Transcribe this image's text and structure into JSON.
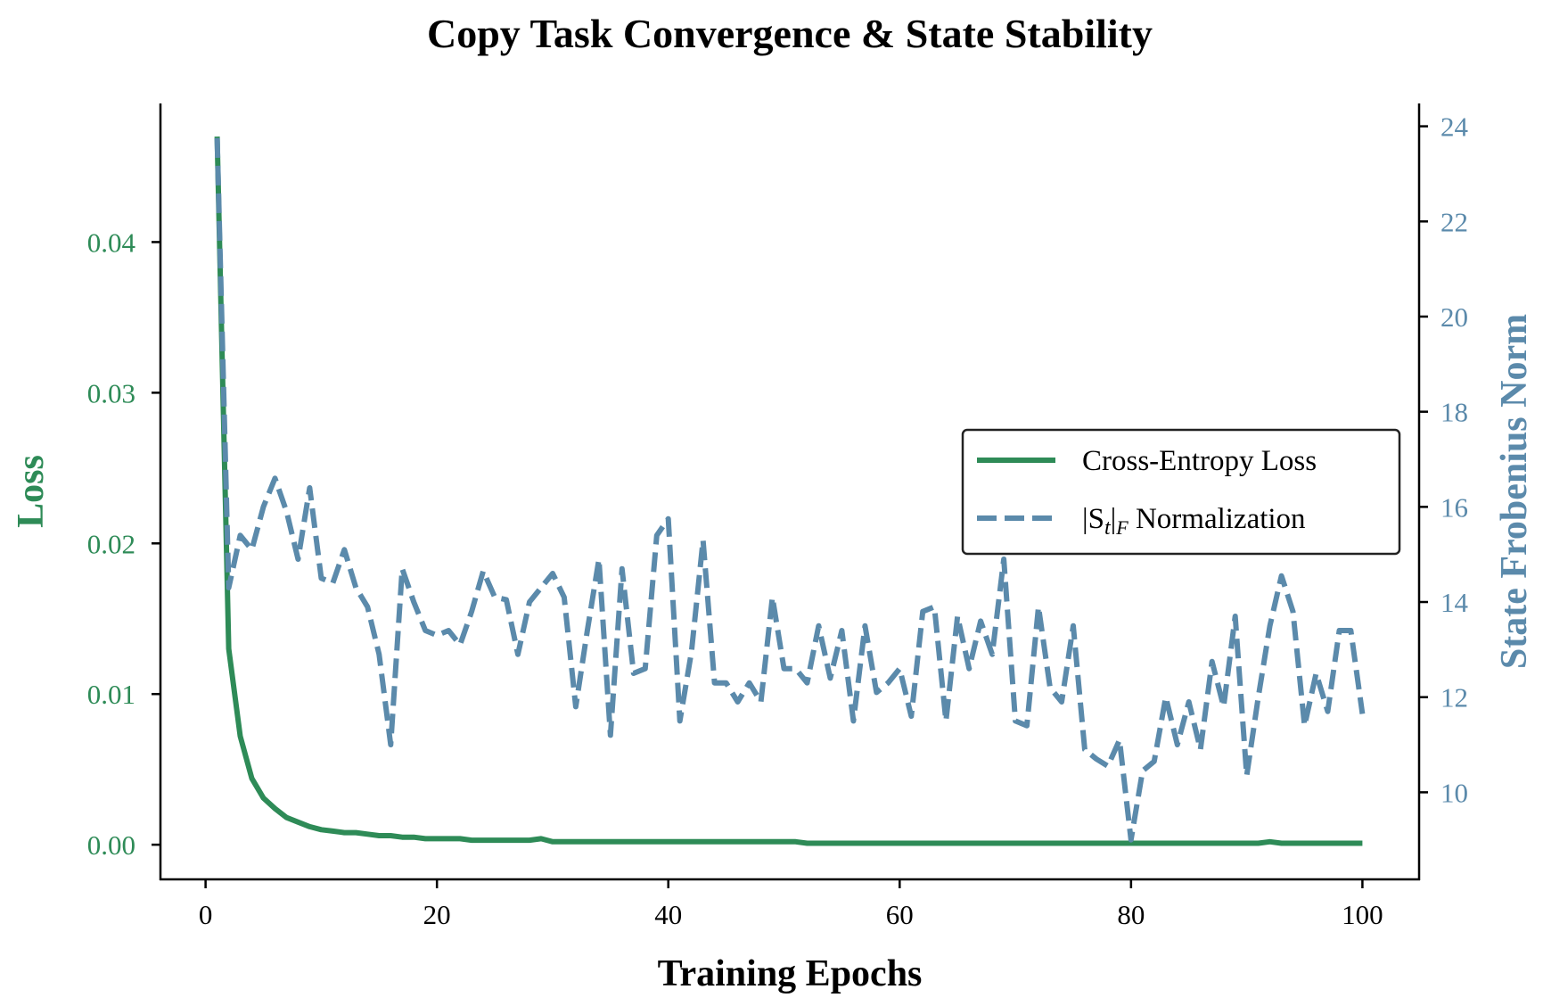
{
  "chart_data": {
    "type": "line",
    "title": "Copy Task Convergence & State Stability",
    "xlabel": "Training Epochs",
    "ylabel_left": "Loss",
    "ylabel_right": "State Frobenius Norm",
    "xlim": [
      -3.9,
      104.9
    ],
    "ylim_left": [
      -0.0023,
      0.0492
    ],
    "ylim_right": [
      8.17,
      24.48
    ],
    "x_ticks": [
      0,
      20,
      40,
      60,
      80,
      100
    ],
    "x_tick_labels": [
      "0",
      "20",
      "40",
      "60",
      "80",
      "100"
    ],
    "y_left_ticks": [
      0,
      0.01,
      0.02,
      0.03,
      0.04
    ],
    "y_left_tick_labels": [
      "0.00",
      "0.01",
      "0.02",
      "0.03",
      "0.04"
    ],
    "y_right_ticks": [
      10,
      12,
      14,
      16,
      18,
      20,
      22,
      24
    ],
    "y_right_tick_labels": [
      "10",
      "12",
      "14",
      "16",
      "18",
      "20",
      "22",
      "24"
    ],
    "grid": false,
    "legend_position": "center-right",
    "series": [
      {
        "name": "Cross-Entropy Loss",
        "axis": "left",
        "style": "solid",
        "color": "#2e8b57",
        "x_start": 1,
        "values": [
          0.047,
          0.013,
          0.0072,
          0.0044,
          0.0031,
          0.0024,
          0.0018,
          0.0015,
          0.0012,
          0.001,
          0.0009,
          0.0008,
          0.0008,
          0.0007,
          0.0006,
          0.0006,
          0.0005,
          0.0005,
          0.0004,
          0.0004,
          0.0004,
          0.0004,
          0.0003,
          0.0003,
          0.0003,
          0.0003,
          0.0003,
          0.0003,
          0.0004,
          0.0002,
          0.0002,
          0.0002,
          0.0002,
          0.0002,
          0.0002,
          0.0002,
          0.0002,
          0.0002,
          0.0002,
          0.0002,
          0.0002,
          0.0002,
          0.0002,
          0.0002,
          0.0002,
          0.0002,
          0.0002,
          0.0002,
          0.0002,
          0.0002,
          0.0002,
          0.0001,
          0.0001,
          0.0001,
          0.0001,
          0.0001,
          0.0001,
          0.0001,
          0.0001,
          0.0001,
          0.0001,
          0.0001,
          0.0001,
          0.0001,
          0.0001,
          0.0001,
          0.0001,
          0.0001,
          0.0001,
          0.0001,
          0.0001,
          0.0001,
          0.0001,
          0.0001,
          0.0001,
          0.0001,
          0.0001,
          0.0001,
          0.0001,
          0.0001,
          0.0001,
          0.0001,
          0.0001,
          0.0001,
          0.0001,
          0.0001,
          0.0001,
          0.0001,
          0.0001,
          0.0001,
          0.0001,
          0.0002,
          0.0001,
          0.0001,
          0.0001,
          0.0001,
          0.0001,
          0.0001,
          0.0001,
          0.0001
        ]
      },
      {
        "name": "|S_t|_F Normalization",
        "axis": "right",
        "style": "dashed",
        "color": "#5b8aab",
        "x_start": 1,
        "values": [
          23.75,
          14.3,
          15.4,
          15.1,
          16.0,
          16.6,
          15.9,
          14.9,
          16.4,
          14.5,
          14.4,
          15.1,
          14.3,
          13.9,
          12.9,
          11.0,
          14.7,
          14.0,
          13.4,
          13.3,
          13.4,
          13.1,
          13.8,
          14.65,
          14.1,
          14.05,
          12.9,
          14.0,
          14.3,
          14.6,
          14.1,
          11.8,
          13.4,
          14.9,
          11.2,
          14.7,
          12.5,
          12.6,
          15.4,
          15.75,
          11.5,
          12.95,
          15.3,
          12.3,
          12.3,
          11.9,
          12.3,
          11.9,
          14.1,
          12.6,
          12.6,
          12.3,
          13.5,
          12.4,
          13.4,
          11.5,
          13.5,
          12.1,
          12.3,
          12.6,
          11.6,
          13.8,
          13.9,
          11.5,
          13.7,
          12.6,
          13.6,
          12.9,
          14.9,
          11.5,
          11.4,
          13.9,
          12.2,
          11.9,
          13.5,
          10.9,
          10.7,
          10.55,
          11.1,
          9.0,
          10.45,
          10.65,
          12.0,
          11.0,
          11.9,
          10.9,
          12.75,
          11.8,
          13.7,
          10.35,
          12.0,
          13.5,
          14.55,
          13.8,
          11.4,
          12.5,
          11.7,
          13.4,
          13.4,
          11.65
        ]
      }
    ],
    "legend": {
      "entry_1_label": "Cross-Entropy Loss",
      "entry_2_prefix": "|S",
      "entry_2_sub_t": "t",
      "entry_2_bar": "|",
      "entry_2_sub_f": "F",
      "entry_2_suffix": " Normalization"
    }
  }
}
